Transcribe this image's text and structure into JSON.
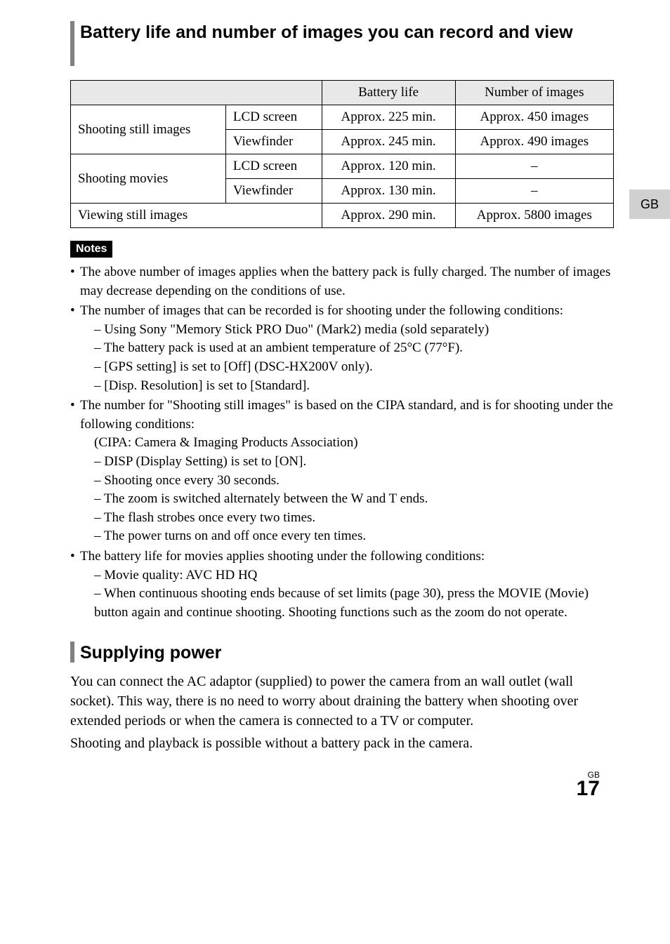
{
  "section1": {
    "title": "Battery life and number of images you can record and view"
  },
  "table": {
    "headers": {
      "col3": "Battery life",
      "col4": "Number of images"
    },
    "rows": [
      {
        "group": "Shooting still images",
        "sub": "LCD screen",
        "life": "Approx. 225 min.",
        "images": "Approx. 450 images"
      },
      {
        "group": "",
        "sub": "Viewfinder",
        "life": "Approx. 245 min.",
        "images": "Approx. 490 images"
      },
      {
        "group": "Shooting movies",
        "sub": "LCD screen",
        "life": "Approx. 120 min.",
        "images": "–"
      },
      {
        "group": "",
        "sub": "Viewfinder",
        "life": "Approx. 130 min.",
        "images": "–"
      },
      {
        "group": "Viewing still images",
        "life": "Approx. 290 min.",
        "images": "Approx. 5800 images"
      }
    ],
    "group1": "Shooting still images",
    "group2": "Shooting movies",
    "group3": "Viewing still images"
  },
  "sideTab": "GB",
  "notes": {
    "label": "Notes",
    "items": [
      {
        "text": "The above number of images applies when the battery pack is fully charged. The number of images may decrease depending on the conditions of use.",
        "subs": []
      },
      {
        "text": "The number of images that can be recorded is for shooting under the following conditions:",
        "subs": [
          "– Using Sony \"Memory Stick PRO Duo\" (Mark2) media (sold separately)",
          "– The battery pack is used at an ambient temperature of 25°C (77°F).",
          "– [GPS setting] is set to [Off] (DSC-HX200V only).",
          "– [Disp. Resolution] is set to [Standard]."
        ]
      },
      {
        "text": "The number for \"Shooting still images\" is based on the CIPA standard, and is for shooting under the following conditions:",
        "subs": [
          "(CIPA: Camera & Imaging Products Association)",
          "– DISP (Display Setting) is set to [ON].",
          "– Shooting once every 30 seconds.",
          "– The zoom is switched alternately between the W and T ends.",
          "– The flash strobes once every two times.",
          "– The power turns on and off once every ten times."
        ]
      },
      {
        "text": "The battery life for movies applies shooting under the following conditions:",
        "subs": [
          "– Movie quality: AVC HD HQ",
          "– When continuous shooting ends because of set limits (page 30), press the MOVIE (Movie) button again and continue shooting. Shooting functions such as the zoom do not operate."
        ]
      }
    ]
  },
  "section2": {
    "title": "Supplying power",
    "para1": "You can connect the AC adaptor (supplied) to power the camera from an wall outlet (wall socket). This way, there is no need to worry about draining the battery when shooting over extended periods or when the camera is connected to a TV or computer.",
    "para2": "Shooting and playback is possible without a battery pack in the camera."
  },
  "footer": {
    "gb": "GB",
    "page": "17"
  }
}
